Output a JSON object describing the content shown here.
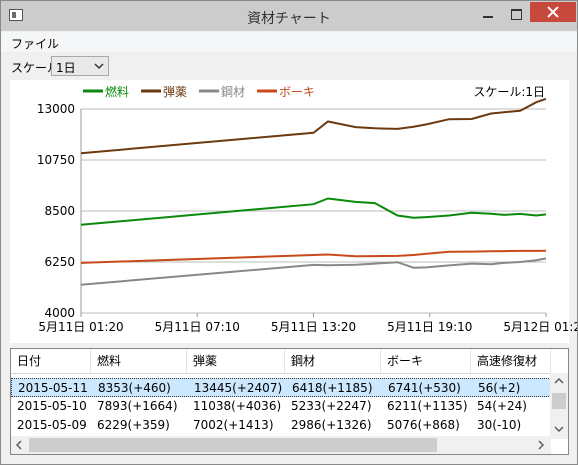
{
  "window": {
    "title": "資材チャート"
  },
  "menu": {
    "file": "ファイル"
  },
  "scale": {
    "label": "スケール",
    "selected": "1日"
  },
  "chart_data": {
    "type": "line",
    "annotation": "スケール:1日",
    "x": [
      "05-11 01:20",
      "05-11 13:20",
      "05-11 14:05",
      "05-11 15:30",
      "05-11 16:30",
      "05-11 17:40",
      "05-11 18:30",
      "05-11 19:10",
      "05-11 20:20",
      "05-11 21:30",
      "05-11 22:30",
      "05-11 23:10",
      "05-12 00:00",
      "05-12 00:50",
      "05-12 01:20"
    ],
    "series": [
      {
        "name": "燃料",
        "color": "#0a8a0a",
        "values": [
          7890,
          8800,
          9050,
          8900,
          8850,
          8300,
          8200,
          8230,
          8300,
          8420,
          8380,
          8330,
          8370,
          8300,
          8350
        ]
      },
      {
        "name": "弾薬",
        "color": "#6b3a10",
        "values": [
          11050,
          11950,
          12450,
          12200,
          12150,
          12120,
          12220,
          12320,
          12550,
          12560,
          12800,
          12860,
          12920,
          13300,
          13450
        ]
      },
      {
        "name": "鋼材",
        "color": "#888888",
        "values": [
          5250,
          6120,
          6110,
          6130,
          6180,
          6240,
          6000,
          6010,
          6100,
          6180,
          6150,
          6210,
          6250,
          6330,
          6410
        ]
      },
      {
        "name": "ボーキ",
        "color": "#c8491a",
        "values": [
          6210,
          6560,
          6580,
          6500,
          6510,
          6520,
          6560,
          6610,
          6700,
          6710,
          6720,
          6730,
          6740,
          6740,
          6750
        ]
      }
    ],
    "xticks": [
      "5月11日 01:20",
      "5月11日 07:10",
      "5月11日 13:20",
      "5月11日 19:10",
      "5月12日 01:20"
    ],
    "yticks": [
      "13000",
      "10750",
      "8500",
      "6250",
      "4000"
    ],
    "ylim": [
      4000,
      13000
    ]
  },
  "table": {
    "columns": [
      "日付",
      "燃料",
      "弾薬",
      "鋼材",
      "ボーキ",
      "高速修復材"
    ],
    "rows": [
      [
        "2015-05-11",
        "8353(+460)",
        "13445(+2407)",
        "6418(+1185)",
        "6741(+530)",
        "56(+2)"
      ],
      [
        "2015-05-10",
        "7893(+1664)",
        "11038(+4036)",
        "5233(+2247)",
        "6211(+1135)",
        "54(+24)"
      ],
      [
        "2015-05-09",
        "6229(+359)",
        "7002(+1413)",
        "2986(+1326)",
        "5076(+868)",
        "30(-10)"
      ]
    ]
  }
}
